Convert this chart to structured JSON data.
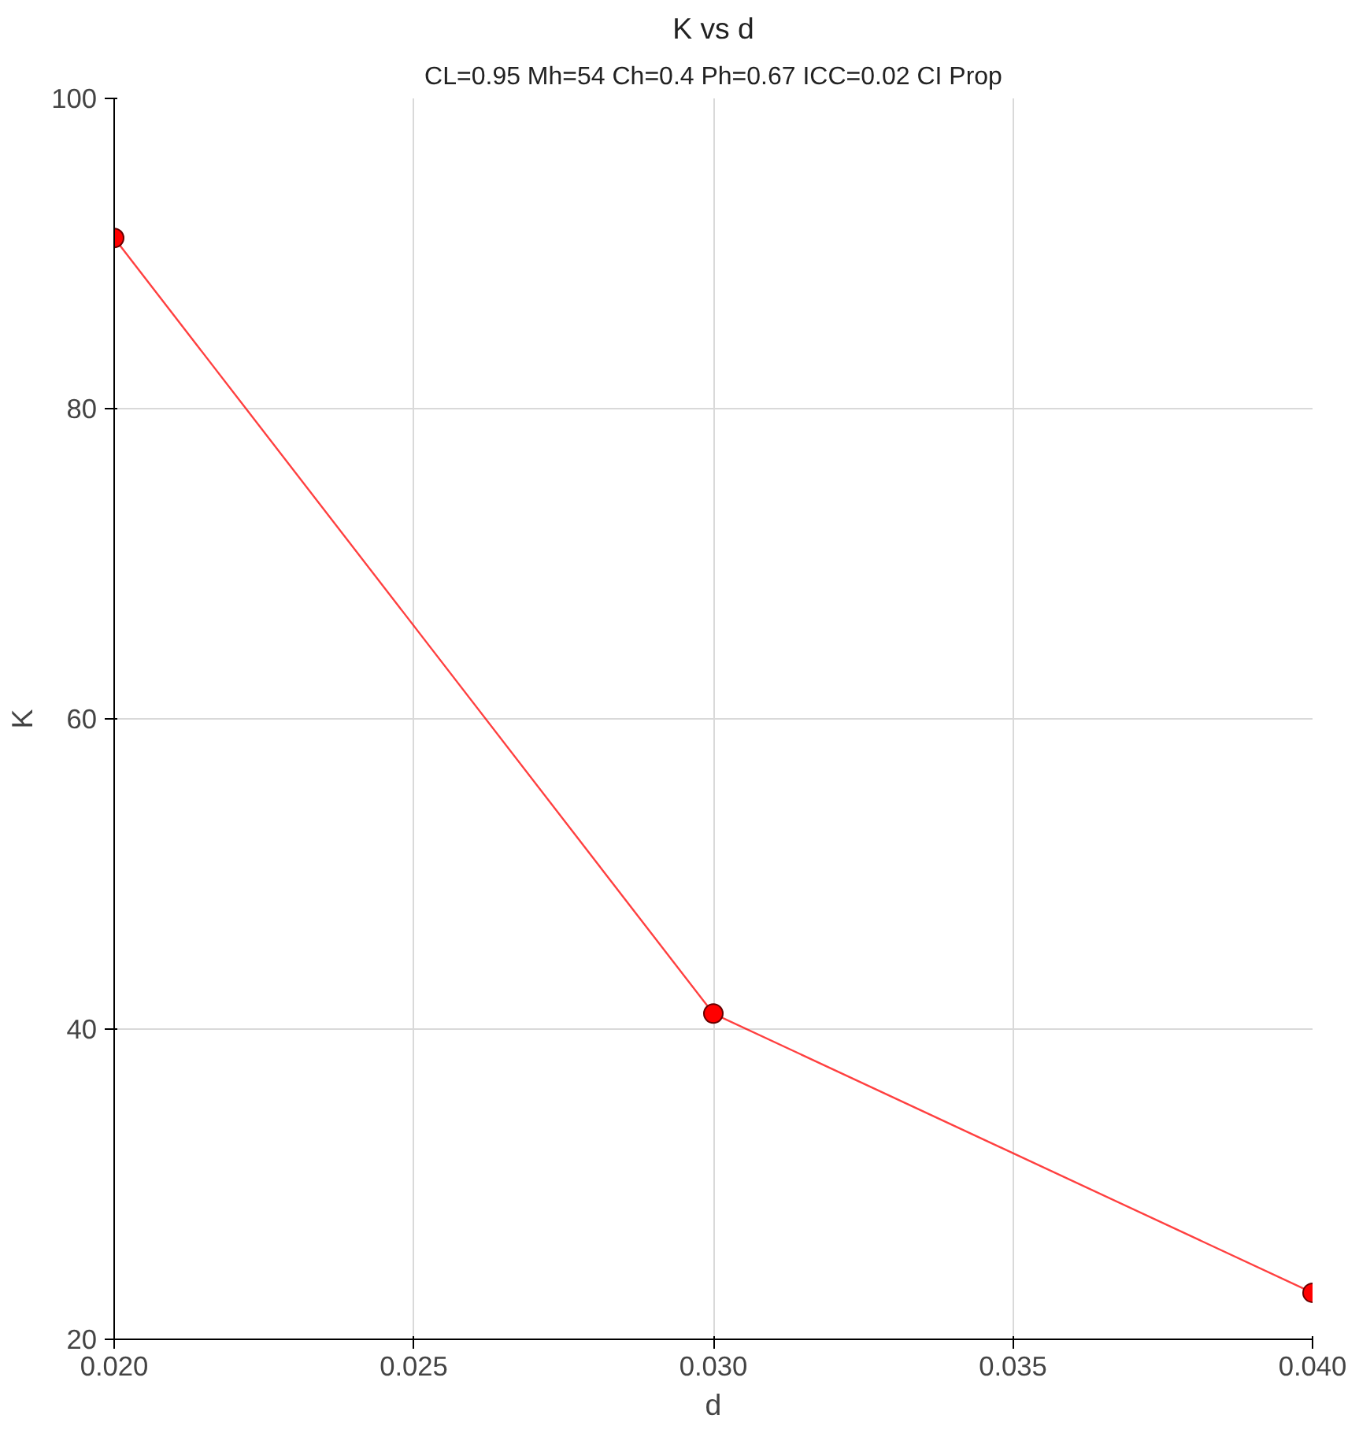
{
  "chart_data": {
    "type": "line",
    "title": "K vs d",
    "subtitle": "CL=0.95 Mh=54 Ch=0.4 Ph=0.67 ICC=0.02 CI Prop",
    "xlabel": "d",
    "ylabel": "K",
    "x": [
      0.02,
      0.03,
      0.04
    ],
    "series": [
      {
        "color": "#ff0000",
        "values": [
          91,
          41,
          23
        ]
      }
    ],
    "xlim": [
      0.02,
      0.04
    ],
    "ylim": [
      20,
      100
    ],
    "xticks": [
      {
        "value": 0.02,
        "label": "0.020"
      },
      {
        "value": 0.025,
        "label": "0.025"
      },
      {
        "value": 0.03,
        "label": "0.030"
      },
      {
        "value": 0.035,
        "label": "0.035"
      },
      {
        "value": 0.04,
        "label": "0.040"
      }
    ],
    "yticks": [
      20,
      40,
      60,
      80,
      100
    ],
    "grid": true,
    "marker": "circle",
    "line_style": "solid"
  }
}
